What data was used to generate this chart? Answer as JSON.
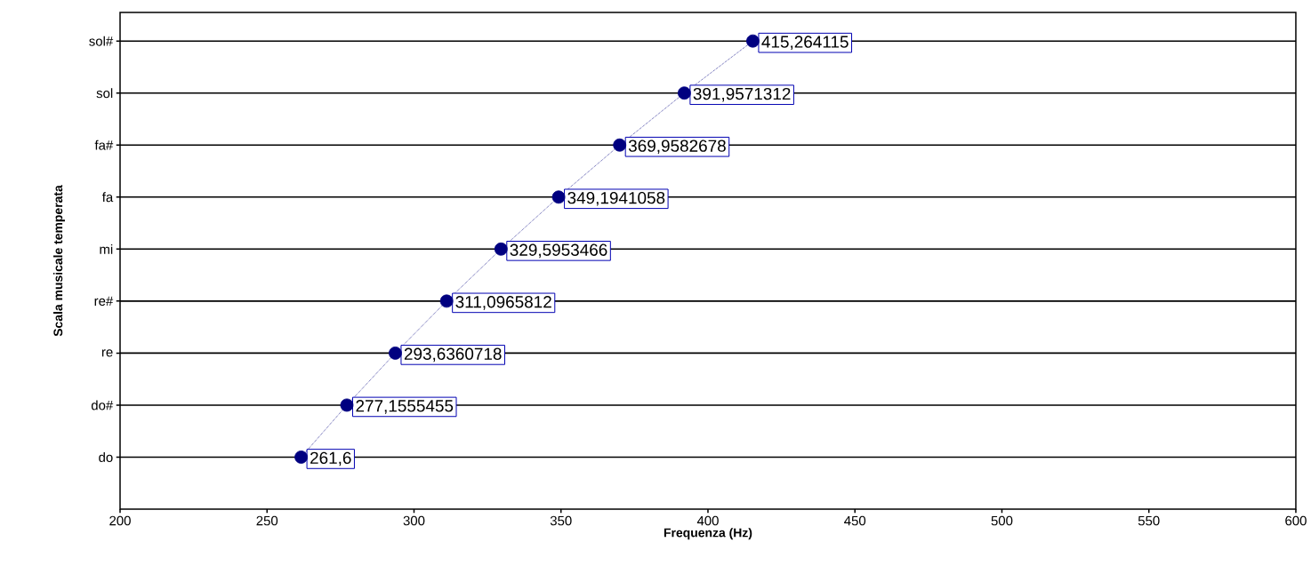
{
  "chart_data": {
    "type": "line",
    "orientation": "horizontal",
    "xlabel": "Frequenza (Hz)",
    "ylabel": "Scala musicale temperata",
    "categories": [
      "sol#",
      "sol",
      "fa#",
      "fa",
      "mi",
      "re#",
      "re",
      "do#",
      "do"
    ],
    "values": [
      415.264115,
      391.9571312,
      369.9582678,
      349.1941058,
      329.5953466,
      311.0965812,
      293.6360718,
      277.1555455,
      261.6
    ],
    "value_labels": [
      "415,264115",
      "391,9571312",
      "369,9582678",
      "349,1941058",
      "329,5953466",
      "311,0965812",
      "293,6360718",
      "277,1555455",
      "261,6"
    ],
    "color": "#000080",
    "marker": "circle",
    "line_style": "dotted",
    "grid": "y",
    "xlim": [
      200,
      600
    ],
    "xticks": [
      200,
      250,
      300,
      350,
      400,
      450,
      500,
      550,
      600
    ]
  }
}
